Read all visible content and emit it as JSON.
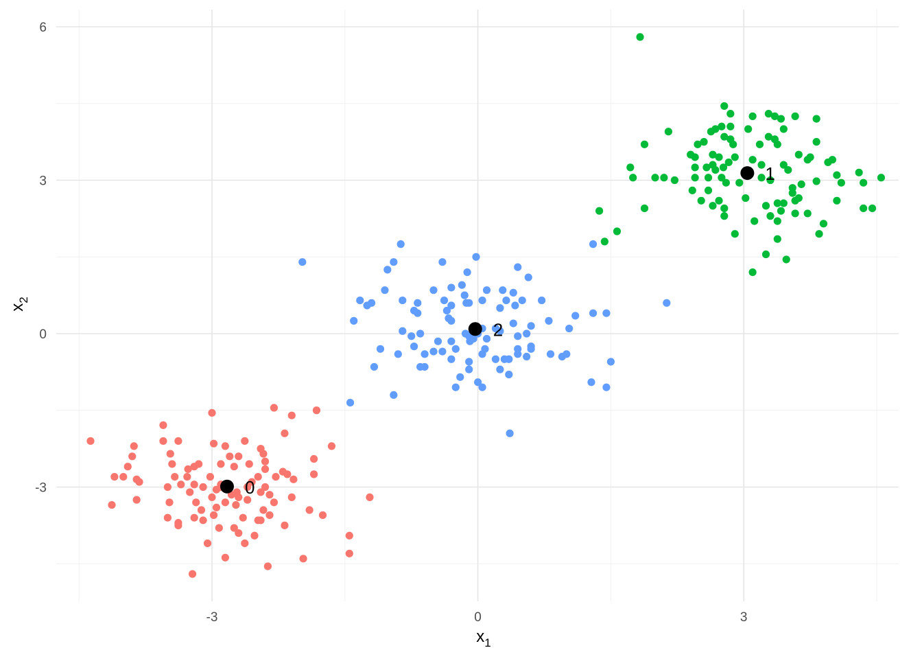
{
  "chart_data": {
    "type": "scatter",
    "title": "",
    "xlabel": "x",
    "xlabel_sub": "1",
    "ylabel": "x",
    "ylabel_sub": "2",
    "xlim": [
      -4.5,
      4.5
    ],
    "ylim": [
      -4.9,
      6.35
    ],
    "x_ticks": [
      -3,
      0,
      3
    ],
    "y_ticks": [
      -3,
      0,
      3,
      6
    ],
    "x_tick_labels": [
      "-3",
      "0",
      "3"
    ],
    "y_tick_labels": [
      "-3",
      "0",
      "3",
      "6"
    ],
    "grid": true,
    "legend": "none",
    "colors": {
      "cluster_0": "#F8766D",
      "cluster_1": "#00BA38",
      "cluster_2": "#619CFF",
      "center": "#000000"
    },
    "centers": [
      {
        "label": "0",
        "x": -2.83,
        "y": -2.99
      },
      {
        "label": "1",
        "x": 3.04,
        "y": 3.14
      },
      {
        "label": "2",
        "x": -0.03,
        "y": 0.09
      }
    ],
    "series": [
      {
        "cluster": "0",
        "color": "#F8766D",
        "points": [
          [
            -4.37,
            -2.1
          ],
          [
            -3.55,
            -1.79
          ],
          [
            -3.55,
            -2.1
          ],
          [
            -3.38,
            -2.1
          ],
          [
            -3.88,
            -2.2
          ],
          [
            -3.47,
            -2.35
          ],
          [
            -3.45,
            -2.55
          ],
          [
            -3.9,
            -2.4
          ],
          [
            -3.95,
            -2.6
          ],
          [
            -4.0,
            -2.8
          ],
          [
            -4.1,
            -2.8
          ],
          [
            -3.85,
            -2.85
          ],
          [
            -3.82,
            -2.9
          ],
          [
            -4.13,
            -3.35
          ],
          [
            -3.85,
            -3.25
          ],
          [
            -3.5,
            -3.0
          ],
          [
            -3.48,
            -3.3
          ],
          [
            -3.5,
            -3.6
          ],
          [
            -3.38,
            -3.7
          ],
          [
            -3.38,
            -3.75
          ],
          [
            -3.27,
            -2.65
          ],
          [
            -3.2,
            -2.6
          ],
          [
            -3.15,
            -2.55
          ],
          [
            -3.02,
            -2.8
          ],
          [
            -2.9,
            -2.55
          ],
          [
            -2.85,
            -2.2
          ],
          [
            -2.8,
            -2.4
          ],
          [
            -2.75,
            -2.6
          ],
          [
            -2.7,
            -2.4
          ],
          [
            -2.63,
            -2.1
          ],
          [
            -2.58,
            -2.55
          ],
          [
            -2.45,
            -2.25
          ],
          [
            -2.42,
            -2.35
          ],
          [
            -2.4,
            -2.5
          ],
          [
            -2.4,
            -2.65
          ],
          [
            -2.3,
            -1.45
          ],
          [
            -2.18,
            -1.95
          ],
          [
            -2.1,
            -1.6
          ],
          [
            -1.82,
            -1.5
          ],
          [
            -1.65,
            -2.2
          ],
          [
            -1.85,
            -2.45
          ],
          [
            -1.85,
            -2.75
          ],
          [
            -2.2,
            -2.7
          ],
          [
            -2.15,
            -2.75
          ],
          [
            -2.08,
            -2.85
          ],
          [
            -2.28,
            -2.8
          ],
          [
            -2.48,
            -2.8
          ],
          [
            -2.55,
            -2.9
          ],
          [
            -2.6,
            -3.0
          ],
          [
            -2.72,
            -3.1
          ],
          [
            -2.9,
            -3.0
          ],
          [
            -2.95,
            -3.05
          ],
          [
            -3.0,
            -3.2
          ],
          [
            -3.1,
            -3.0
          ],
          [
            -3.2,
            -2.95
          ],
          [
            -3.25,
            -3.1
          ],
          [
            -3.18,
            -3.3
          ],
          [
            -3.12,
            -3.45
          ],
          [
            -3.2,
            -3.6
          ],
          [
            -3.1,
            -3.65
          ],
          [
            -2.98,
            -3.55
          ],
          [
            -2.95,
            -3.4
          ],
          [
            -2.85,
            -3.3
          ],
          [
            -2.78,
            -3.15
          ],
          [
            -2.7,
            -3.2
          ],
          [
            -2.6,
            -3.25
          ],
          [
            -2.45,
            -3.1
          ],
          [
            -2.4,
            -3.0
          ],
          [
            -2.35,
            -3.15
          ],
          [
            -2.3,
            -3.3
          ],
          [
            -2.42,
            -3.45
          ],
          [
            -2.35,
            -3.55
          ],
          [
            -2.48,
            -3.65
          ],
          [
            -2.65,
            -3.6
          ],
          [
            -2.75,
            -3.8
          ],
          [
            -2.92,
            -3.8
          ],
          [
            -3.05,
            -4.1
          ],
          [
            -2.98,
            -2.15
          ],
          [
            -3.0,
            -1.55
          ],
          [
            -2.1,
            -3.2
          ],
          [
            -2.18,
            -3.75
          ],
          [
            -1.9,
            -3.45
          ],
          [
            -1.75,
            -3.55
          ],
          [
            -1.45,
            -3.95
          ],
          [
            -1.45,
            -4.3
          ],
          [
            -1.22,
            -3.2
          ],
          [
            -1.97,
            -4.4
          ],
          [
            -2.37,
            -4.55
          ],
          [
            -2.63,
            -4.1
          ],
          [
            -2.45,
            -3.65
          ],
          [
            -2.52,
            -3.95
          ],
          [
            -2.7,
            -3.9
          ],
          [
            -2.85,
            -4.38
          ],
          [
            -3.22,
            -4.7
          ],
          [
            -2.73,
            -3.35
          ],
          [
            -2.9,
            -2.95
          ],
          [
            -3.35,
            -2.95
          ],
          [
            -3.42,
            -2.8
          ],
          [
            -3.28,
            -2.8
          ]
        ]
      },
      {
        "cluster": "1",
        "color": "#00BA38",
        "points": [
          [
            1.83,
            5.8
          ],
          [
            2.78,
            4.45
          ],
          [
            2.85,
            4.3
          ],
          [
            3.1,
            4.25
          ],
          [
            3.28,
            4.3
          ],
          [
            3.35,
            4.25
          ],
          [
            3.42,
            4.2
          ],
          [
            3.58,
            4.25
          ],
          [
            3.82,
            4.2
          ],
          [
            2.75,
            4.05
          ],
          [
            2.68,
            4.0
          ],
          [
            2.63,
            3.95
          ],
          [
            2.85,
            4.05
          ],
          [
            3.05,
            4.0
          ],
          [
            3.45,
            4.0
          ],
          [
            2.15,
            3.95
          ],
          [
            1.88,
            3.7
          ],
          [
            2.48,
            3.7
          ],
          [
            2.55,
            3.75
          ],
          [
            2.78,
            3.85
          ],
          [
            2.85,
            3.8
          ],
          [
            3.28,
            3.85
          ],
          [
            3.35,
            3.8
          ],
          [
            3.38,
            3.7
          ],
          [
            3.82,
            3.75
          ],
          [
            3.18,
            3.7
          ],
          [
            2.88,
            3.7
          ],
          [
            2.65,
            3.5
          ],
          [
            2.4,
            3.5
          ],
          [
            2.45,
            3.45
          ],
          [
            2.58,
            3.25
          ],
          [
            2.65,
            3.3
          ],
          [
            2.68,
            3.2
          ],
          [
            2.77,
            3.25
          ],
          [
            2.83,
            3.35
          ],
          [
            2.72,
            3.45
          ],
          [
            2.9,
            3.45
          ],
          [
            3.1,
            3.4
          ],
          [
            3.2,
            3.3
          ],
          [
            3.45,
            3.3
          ],
          [
            3.5,
            3.2
          ],
          [
            3.62,
            3.5
          ],
          [
            3.75,
            3.45
          ],
          [
            3.72,
            3.4
          ],
          [
            3.95,
            3.35
          ],
          [
            4.0,
            3.4
          ],
          [
            4.05,
            3.1
          ],
          [
            4.1,
            2.95
          ],
          [
            4.55,
            3.05
          ],
          [
            3.82,
            2.98
          ],
          [
            3.65,
            2.92
          ],
          [
            3.55,
            2.85
          ],
          [
            3.55,
            2.75
          ],
          [
            3.58,
            2.6
          ],
          [
            3.62,
            2.65
          ],
          [
            3.45,
            2.55
          ],
          [
            3.72,
            2.35
          ],
          [
            3.58,
            2.35
          ],
          [
            3.38,
            2.55
          ],
          [
            3.25,
            2.5
          ],
          [
            3.42,
            2.4
          ],
          [
            3.3,
            2.3
          ],
          [
            3.38,
            2.2
          ],
          [
            3.12,
            2.2
          ],
          [
            3.3,
            3.0
          ],
          [
            3.2,
            3.05
          ],
          [
            2.95,
            2.95
          ],
          [
            2.8,
            2.95
          ],
          [
            2.75,
            3.05
          ],
          [
            2.6,
            3.05
          ],
          [
            2.45,
            3.05
          ],
          [
            2.6,
            2.8
          ],
          [
            2.72,
            2.6
          ],
          [
            2.65,
            2.5
          ],
          [
            2.78,
            2.45
          ],
          [
            2.52,
            2.6
          ],
          [
            2.42,
            2.8
          ],
          [
            2.22,
            3.0
          ],
          [
            2.1,
            3.05
          ],
          [
            2.0,
            3.05
          ],
          [
            1.75,
            3.05
          ],
          [
            1.72,
            3.25
          ],
          [
            1.37,
            2.4
          ],
          [
            1.57,
            2.0
          ],
          [
            1.43,
            1.8
          ],
          [
            1.88,
            2.45
          ],
          [
            2.78,
            2.3
          ],
          [
            2.9,
            1.95
          ],
          [
            3.1,
            1.2
          ],
          [
            3.25,
            1.55
          ],
          [
            3.38,
            1.85
          ],
          [
            3.48,
            1.45
          ],
          [
            3.9,
            2.15
          ],
          [
            4.05,
            2.6
          ],
          [
            4.35,
            2.45
          ],
          [
            4.45,
            2.45
          ],
          [
            4.3,
            3.15
          ],
          [
            4.35,
            2.95
          ],
          [
            3.85,
            1.95
          ],
          [
            3.02,
            2.65
          ],
          [
            2.45,
            3.25
          ]
        ]
      },
      {
        "cluster": "2",
        "color": "#619CFF",
        "points": [
          [
            -1.98,
            1.4
          ],
          [
            -0.87,
            1.75
          ],
          [
            -0.95,
            1.4
          ],
          [
            -1.02,
            1.25
          ],
          [
            -0.4,
            1.4
          ],
          [
            -0.02,
            1.5
          ],
          [
            -0.12,
            1.2
          ],
          [
            0.45,
            1.3
          ],
          [
            0.57,
            1.1
          ],
          [
            1.3,
            1.75
          ],
          [
            -1.33,
            0.65
          ],
          [
            -1.2,
            0.6
          ],
          [
            -1.25,
            0.55
          ],
          [
            -1.4,
            0.25
          ],
          [
            -1.05,
            0.85
          ],
          [
            -0.85,
            0.65
          ],
          [
            -0.68,
            0.6
          ],
          [
            -0.68,
            0.4
          ],
          [
            -0.72,
            0.45
          ],
          [
            -0.5,
            0.85
          ],
          [
            -0.38,
            0.65
          ],
          [
            -0.3,
            0.9
          ],
          [
            -0.18,
            0.95
          ],
          [
            -0.15,
            0.75
          ],
          [
            -0.13,
            0.6
          ],
          [
            -0.1,
            0.6
          ],
          [
            -0.3,
            0.55
          ],
          [
            0.05,
            0.65
          ],
          [
            0.1,
            0.85
          ],
          [
            0.25,
            0.5
          ],
          [
            0.28,
            0.85
          ],
          [
            0.32,
            0.65
          ],
          [
            0.4,
            0.8
          ],
          [
            0.42,
            0.55
          ],
          [
            0.5,
            0.65
          ],
          [
            0.72,
            0.65
          ],
          [
            0.8,
            0.25
          ],
          [
            1.03,
            0.1
          ],
          [
            1.1,
            0.35
          ],
          [
            1.3,
            0.4
          ],
          [
            1.45,
            0.4
          ],
          [
            -0.35,
            0.45
          ],
          [
            -0.33,
            0.3
          ],
          [
            -0.3,
            0.25
          ],
          [
            -0.14,
            0.0
          ],
          [
            -0.1,
            -0.05
          ],
          [
            -0.05,
            -0.1
          ],
          [
            -0.09,
            -0.15
          ],
          [
            0.0,
            0.0
          ],
          [
            0.05,
            0.1
          ],
          [
            0.1,
            -0.1
          ],
          [
            0.2,
            0.1
          ],
          [
            0.25,
            0.05
          ],
          [
            0.4,
            0.2
          ],
          [
            0.45,
            -0.05
          ],
          [
            0.55,
            0.0
          ],
          [
            0.6,
            -0.25
          ],
          [
            0.6,
            -0.3
          ],
          [
            0.45,
            -0.3
          ],
          [
            0.45,
            -0.4
          ],
          [
            0.35,
            -0.5
          ],
          [
            0.3,
            -0.5
          ],
          [
            0.25,
            -0.7
          ],
          [
            0.35,
            -0.8
          ],
          [
            0.2,
            -0.5
          ],
          [
            0.05,
            -0.4
          ],
          [
            -0.1,
            -0.55
          ],
          [
            -0.25,
            -0.3
          ],
          [
            -0.3,
            -0.15
          ],
          [
            -0.4,
            -0.35
          ],
          [
            -0.45,
            -0.15
          ],
          [
            -0.5,
            -0.35
          ],
          [
            -0.6,
            -0.4
          ],
          [
            -0.6,
            -0.65
          ],
          [
            -0.65,
            -0.65
          ],
          [
            -0.72,
            -0.25
          ],
          [
            -0.75,
            -0.05
          ],
          [
            -0.85,
            0.05
          ],
          [
            -0.65,
            0.0
          ],
          [
            -0.9,
            -0.4
          ],
          [
            -1.1,
            -0.3
          ],
          [
            -1.17,
            -0.65
          ],
          [
            -0.95,
            -1.2
          ],
          [
            -0.2,
            -0.85
          ],
          [
            -0.1,
            -0.7
          ],
          [
            0.08,
            -0.3
          ],
          [
            -0.25,
            -1.05
          ],
          [
            0.0,
            -0.95
          ],
          [
            0.05,
            -1.05
          ],
          [
            0.82,
            -0.4
          ],
          [
            0.95,
            -0.45
          ],
          [
            1.0,
            -0.4
          ],
          [
            1.28,
            -0.95
          ],
          [
            1.45,
            -1.05
          ],
          [
            1.5,
            -0.55
          ],
          [
            2.13,
            0.6
          ],
          [
            0.36,
            -1.95
          ],
          [
            -1.44,
            -1.35
          ],
          [
            -0.3,
            -0.5
          ],
          [
            0.6,
            0.15
          ],
          [
            0.55,
            -0.45
          ]
        ]
      }
    ]
  }
}
